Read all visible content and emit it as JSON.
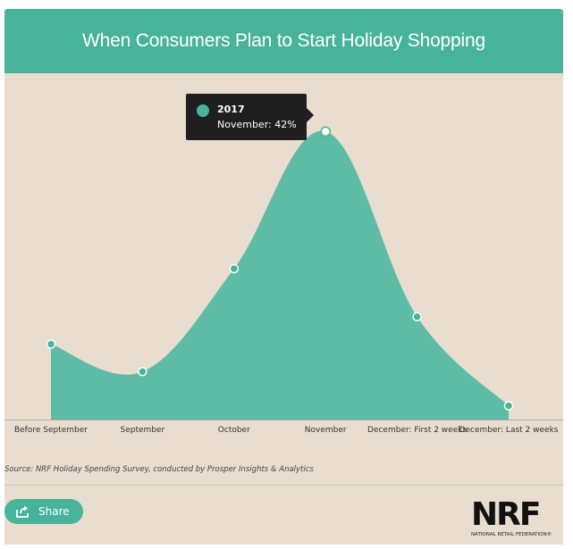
{
  "title": "When Consumers Plan to Start Holiday Shopping",
  "source": "Source:  NRF Holiday Spending Survey, conducted by Prosper Insights & Analytics",
  "share_label": "Share",
  "logo": {
    "mark": "NRF",
    "tagline": "NATIONAL RETAIL FEDERATION®"
  },
  "tooltip": {
    "series": "2017",
    "text": "November: 42%"
  },
  "colors": {
    "accent": "#46b39a",
    "area": "#5dbba6",
    "background": "#e8ddcf"
  },
  "chart_data": {
    "type": "area",
    "categories": [
      "Before September",
      "September",
      "October",
      "November",
      "December: First 2 weeks",
      "December: Last 2 weeks"
    ],
    "series": [
      {
        "name": "2017",
        "values": [
          11,
          7,
          22,
          42,
          15,
          2
        ]
      }
    ],
    "ylim": [
      0,
      44
    ],
    "grid": false,
    "legend": "none",
    "highlighted_index": 3
  }
}
